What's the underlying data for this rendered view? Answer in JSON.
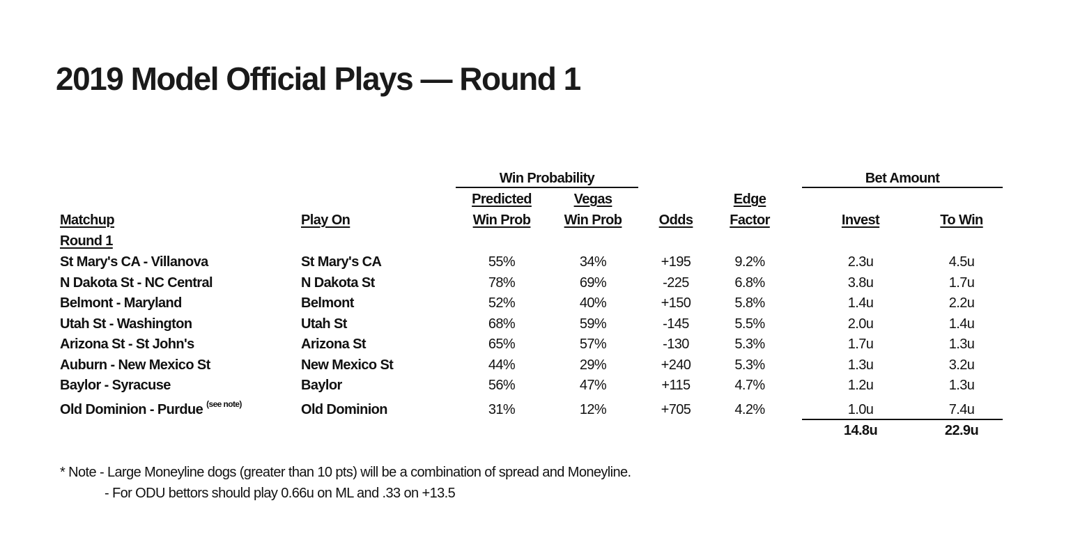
{
  "title": "2019 Model Official Plays — Round 1",
  "groups": {
    "win_probability": "Win Probability",
    "bet_amount": "Bet Amount"
  },
  "headers": {
    "matchup": "Matchup",
    "play_on": "Play On",
    "predicted_1": "Predicted",
    "predicted_2": "Win Prob",
    "vegas_1": "Vegas",
    "vegas_2": "Win Prob",
    "odds": "Odds",
    "edge_1": "Edge",
    "edge_2": "Factor",
    "invest": "Invest",
    "to_win": "To Win"
  },
  "section_label": "Round 1",
  "rows": [
    {
      "matchup": "St Mary's CA - Villanova",
      "note": "",
      "play_on": "St Mary's CA",
      "predicted": "55%",
      "vegas": "34%",
      "odds": "+195",
      "edge": "9.2%",
      "invest": "2.3u",
      "to_win": "4.5u"
    },
    {
      "matchup": "N Dakota St - NC Central",
      "note": "",
      "play_on": "N Dakota St",
      "predicted": "78%",
      "vegas": "69%",
      "odds": "-225",
      "edge": "6.8%",
      "invest": "3.8u",
      "to_win": "1.7u"
    },
    {
      "matchup": "Belmont - Maryland",
      "note": "",
      "play_on": "Belmont",
      "predicted": "52%",
      "vegas": "40%",
      "odds": "+150",
      "edge": "5.8%",
      "invest": "1.4u",
      "to_win": "2.2u"
    },
    {
      "matchup": "Utah St - Washington",
      "note": "",
      "play_on": "Utah St",
      "predicted": "68%",
      "vegas": "59%",
      "odds": "-145",
      "edge": "5.5%",
      "invest": "2.0u",
      "to_win": "1.4u"
    },
    {
      "matchup": "Arizona St - St John's",
      "note": "",
      "play_on": "Arizona St",
      "predicted": "65%",
      "vegas": "57%",
      "odds": "-130",
      "edge": "5.3%",
      "invest": "1.7u",
      "to_win": "1.3u"
    },
    {
      "matchup": "Auburn - New Mexico St",
      "note": "",
      "play_on": "New Mexico St",
      "predicted": "44%",
      "vegas": "29%",
      "odds": "+240",
      "edge": "5.3%",
      "invest": "1.3u",
      "to_win": "3.2u"
    },
    {
      "matchup": "Baylor - Syracuse",
      "note": "",
      "play_on": "Baylor",
      "predicted": "56%",
      "vegas": "47%",
      "odds": "+115",
      "edge": "4.7%",
      "invest": "1.2u",
      "to_win": "1.3u"
    },
    {
      "matchup": "Old Dominion - Purdue",
      "note": "(see note)",
      "play_on": "Old Dominion",
      "predicted": "31%",
      "vegas": "12%",
      "odds": "+705",
      "edge": "4.2%",
      "invest": "1.0u",
      "to_win": "7.4u"
    }
  ],
  "totals": {
    "invest": "14.8u",
    "to_win": "22.9u"
  },
  "footnotes": {
    "line1": "* Note - Large Moneyline dogs (greater than 10 pts) will be a combination of spread and Moneyline.",
    "line2": "- For ODU bettors should play 0.66u on ML and .33 on +13.5"
  }
}
